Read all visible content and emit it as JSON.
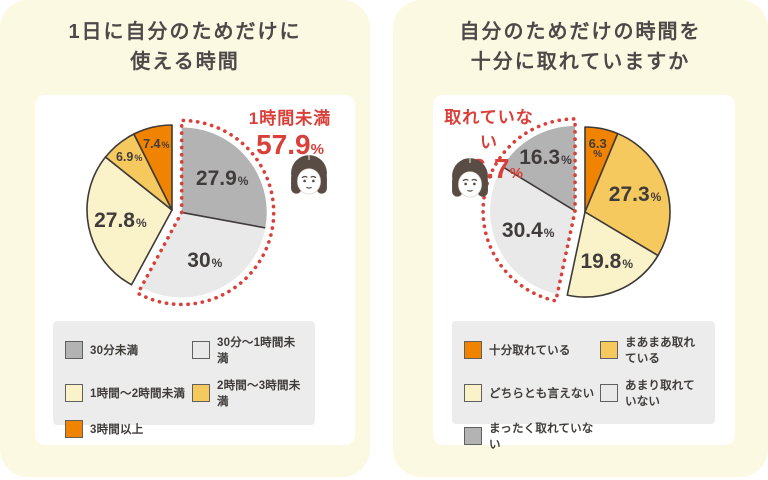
{
  "page": {
    "background_color": "#FFFFFF",
    "card_color": "#FCF9E3",
    "panel_color": "#FFFFFF",
    "legend_background": "#ECECEC",
    "accent_red": "#D9403A",
    "text_dark": "#4C4948",
    "icons": {
      "face": "woman-face-icon"
    }
  },
  "chart_data": [
    {
      "type": "pie",
      "title": "1日に自分のためだけに使える時間",
      "title_lines": [
        "1日に自分のためだけに",
        "使える時間"
      ],
      "categories": [
        "30分未満",
        "30分〜1時間未満",
        "1時間〜2時間未満",
        "2時間〜3時間未満",
        "3時間以上"
      ],
      "values": [
        27.9,
        30,
        27.8,
        6.9,
        7.4
      ],
      "value_labels": [
        "27.9%",
        "30%",
        "27.8%",
        "6.9%",
        "7.4%"
      ],
      "unit": "%",
      "colors": [
        "#B3B3B3",
        "#E9E9E9",
        "#FAF2C8",
        "#F6C95F",
        "#F08300"
      ],
      "start_angle_deg": 0,
      "direction": "clockwise",
      "legend_position": "bottom",
      "highlight": {
        "indices": [
          0,
          1
        ],
        "label": "1時間未満",
        "value": 57.9,
        "value_display": "57.9",
        "unit": "%",
        "style": "red-dotted-outline, exploded"
      }
    },
    {
      "type": "pie",
      "title": "自分のためだけの時間を十分に取れていますか",
      "title_lines": [
        "自分のためだけの時間を",
        "十分に取れていますか"
      ],
      "categories": [
        "十分取れている",
        "まあまあ取れている",
        "どちらとも言えない",
        "あまり取れていない",
        "まったく取れていない"
      ],
      "values": [
        6.3,
        27.3,
        19.8,
        30.4,
        16.3
      ],
      "value_labels": [
        "6.3%",
        "27.3%",
        "19.8%",
        "30.4%",
        "16.3%"
      ],
      "unit": "%",
      "colors": [
        "#F08300",
        "#F6C95F",
        "#FAF2C8",
        "#E9E9E9",
        "#B3B3B3"
      ],
      "start_angle_deg": 0,
      "direction": "clockwise",
      "legend_position": "bottom",
      "highlight": {
        "indices": [
          3,
          4
        ],
        "label": "取れていない",
        "value": 46.7,
        "value_display": "46.7",
        "unit": "%",
        "style": "red-dotted-outline, exploded"
      }
    }
  ]
}
